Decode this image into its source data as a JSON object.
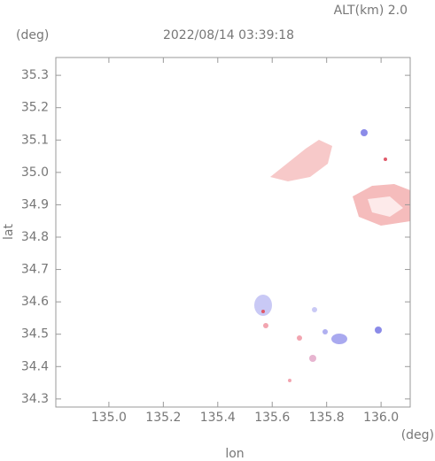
{
  "chart_data": {
    "type": "field",
    "title": "2022/08/14 03:39:18",
    "annotations": {
      "altitude": "ALT(km) 2.0",
      "y_unit": "(deg)",
      "x_unit": "(deg)"
    },
    "xlabel": "lon",
    "ylabel": "lat",
    "xlim": [
      134.805,
      136.107
    ],
    "ylim": [
      34.275,
      35.355
    ],
    "xticks": [
      {
        "value": 135.0,
        "label": "135.0"
      },
      135.2,
      135.4,
      135.6,
      135.8,
      {
        "value": 136.0,
        "label": "136.0"
      }
    ],
    "yticks": [
      34.3,
      34.4,
      34.5,
      34.6,
      34.7,
      34.8,
      34.9,
      {
        "value": 35.0,
        "label": "35.0"
      },
      35.1,
      35.2,
      35.3
    ]
  }
}
